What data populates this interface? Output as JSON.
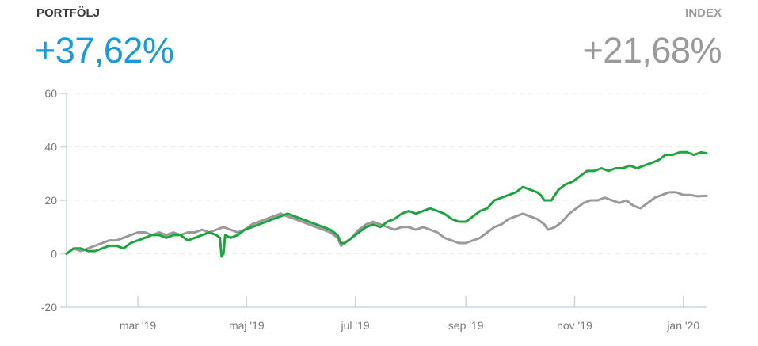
{
  "header": {
    "portfolio_label": "PORTFÖLJ",
    "portfolio_value": "+37,62%",
    "index_label": "INDEX",
    "index_value": "+21,68%"
  },
  "colors": {
    "portfolio_value": "#1a9ad6",
    "index_value": "#9a9a9a",
    "portfolio_line": "#1fa33f",
    "index_line": "#9a9a9a",
    "axis": "#c8d6e2"
  },
  "chart_data": {
    "type": "line",
    "title": "",
    "xlabel": "",
    "ylabel": "",
    "ylim": [
      -20,
      60
    ],
    "yticks": [
      -20,
      0,
      20,
      40,
      60
    ],
    "xlim": [
      "2019-01-20",
      "2020-01-14"
    ],
    "xticks": [
      {
        "label": "mar '19",
        "x": "2019-03-01"
      },
      {
        "label": "maj '19",
        "x": "2019-05-01"
      },
      {
        "label": "jul '19",
        "x": "2019-07-01"
      },
      {
        "label": "sep '19",
        "x": "2019-09-01"
      },
      {
        "label": "nov '19",
        "x": "2019-11-01"
      },
      {
        "label": "jan '20",
        "x": "2020-01-01"
      }
    ],
    "grid": "horizontal dashed",
    "legend": "none",
    "series": [
      {
        "points": [
          [
            "2019-01-20",
            0
          ],
          [
            "2019-01-24",
            2
          ],
          [
            "2019-01-28",
            2
          ],
          [
            "2019-02-01",
            1
          ],
          [
            "2019-02-05",
            1
          ],
          [
            "2019-02-09",
            2
          ],
          [
            "2019-02-13",
            3
          ],
          [
            "2019-02-17",
            3
          ],
          [
            "2019-02-21",
            2
          ],
          [
            "2019-02-25",
            4
          ],
          [
            "2019-03-01",
            5
          ],
          [
            "2019-03-05",
            6
          ],
          [
            "2019-03-09",
            7
          ],
          [
            "2019-03-13",
            7
          ],
          [
            "2019-03-17",
            6
          ],
          [
            "2019-03-21",
            7
          ],
          [
            "2019-03-25",
            7
          ],
          [
            "2019-03-29",
            5
          ],
          [
            "2019-04-02",
            6
          ],
          [
            "2019-04-06",
            7
          ],
          [
            "2019-04-10",
            8
          ],
          [
            "2019-04-14",
            7
          ],
          [
            "2019-04-16",
            6
          ],
          [
            "2019-04-17",
            -1
          ],
          [
            "2019-04-18",
            0
          ],
          [
            "2019-04-19",
            7
          ],
          [
            "2019-04-22",
            6
          ],
          [
            "2019-04-26",
            7
          ],
          [
            "2019-04-30",
            9
          ],
          [
            "2019-05-04",
            10
          ],
          [
            "2019-05-08",
            11
          ],
          [
            "2019-05-12",
            12
          ],
          [
            "2019-05-16",
            13
          ],
          [
            "2019-05-20",
            14
          ],
          [
            "2019-05-24",
            15
          ],
          [
            "2019-05-28",
            14
          ],
          [
            "2019-06-01",
            13
          ],
          [
            "2019-06-05",
            12
          ],
          [
            "2019-06-09",
            11
          ],
          [
            "2019-06-13",
            10
          ],
          [
            "2019-06-17",
            9
          ],
          [
            "2019-06-21",
            7
          ],
          [
            "2019-06-23",
            4
          ],
          [
            "2019-06-25",
            4
          ],
          [
            "2019-06-29",
            6
          ],
          [
            "2019-07-03",
            8
          ],
          [
            "2019-07-07",
            10
          ],
          [
            "2019-07-11",
            11
          ],
          [
            "2019-07-15",
            10
          ],
          [
            "2019-07-19",
            12
          ],
          [
            "2019-07-23",
            13
          ],
          [
            "2019-07-27",
            15
          ],
          [
            "2019-07-31",
            16
          ],
          [
            "2019-08-04",
            15
          ],
          [
            "2019-08-08",
            16
          ],
          [
            "2019-08-12",
            17
          ],
          [
            "2019-08-16",
            16
          ],
          [
            "2019-08-20",
            15
          ],
          [
            "2019-08-24",
            13
          ],
          [
            "2019-08-28",
            12
          ],
          [
            "2019-09-01",
            12
          ],
          [
            "2019-09-05",
            14
          ],
          [
            "2019-09-09",
            16
          ],
          [
            "2019-09-13",
            17
          ],
          [
            "2019-09-17",
            20
          ],
          [
            "2019-09-21",
            21
          ],
          [
            "2019-09-25",
            22
          ],
          [
            "2019-09-29",
            23
          ],
          [
            "2019-10-03",
            25
          ],
          [
            "2019-10-07",
            24
          ],
          [
            "2019-10-11",
            23
          ],
          [
            "2019-10-13",
            22
          ],
          [
            "2019-10-15",
            20
          ],
          [
            "2019-10-19",
            20
          ],
          [
            "2019-10-23",
            24
          ],
          [
            "2019-10-27",
            26
          ],
          [
            "2019-10-31",
            27
          ],
          [
            "2019-11-04",
            29
          ],
          [
            "2019-11-08",
            31
          ],
          [
            "2019-11-12",
            31
          ],
          [
            "2019-11-16",
            32
          ],
          [
            "2019-11-20",
            31
          ],
          [
            "2019-11-24",
            32
          ],
          [
            "2019-11-28",
            32
          ],
          [
            "2019-12-02",
            33
          ],
          [
            "2019-12-06",
            32
          ],
          [
            "2019-12-10",
            33
          ],
          [
            "2019-12-14",
            34
          ],
          [
            "2019-12-18",
            35
          ],
          [
            "2019-12-22",
            37
          ],
          [
            "2019-12-26",
            37
          ],
          [
            "2019-12-30",
            38
          ],
          [
            "2020-01-03",
            38
          ],
          [
            "2020-01-07",
            37
          ],
          [
            "2020-01-11",
            38
          ],
          [
            "2020-01-14",
            37.6
          ]
        ]
      },
      {
        "points": [
          [
            "2019-01-20",
            0
          ],
          [
            "2019-01-24",
            2
          ],
          [
            "2019-01-28",
            1
          ],
          [
            "2019-02-01",
            2
          ],
          [
            "2019-02-05",
            3
          ],
          [
            "2019-02-09",
            4
          ],
          [
            "2019-02-13",
            5
          ],
          [
            "2019-02-17",
            5
          ],
          [
            "2019-02-21",
            6
          ],
          [
            "2019-02-25",
            7
          ],
          [
            "2019-03-01",
            8
          ],
          [
            "2019-03-05",
            8
          ],
          [
            "2019-03-09",
            7
          ],
          [
            "2019-03-13",
            8
          ],
          [
            "2019-03-17",
            7
          ],
          [
            "2019-03-21",
            8
          ],
          [
            "2019-03-25",
            7
          ],
          [
            "2019-03-29",
            8
          ],
          [
            "2019-04-02",
            8
          ],
          [
            "2019-04-06",
            9
          ],
          [
            "2019-04-10",
            8
          ],
          [
            "2019-04-14",
            9
          ],
          [
            "2019-04-18",
            10
          ],
          [
            "2019-04-22",
            9
          ],
          [
            "2019-04-26",
            8
          ],
          [
            "2019-04-30",
            9
          ],
          [
            "2019-05-04",
            11
          ],
          [
            "2019-05-08",
            12
          ],
          [
            "2019-05-12",
            13
          ],
          [
            "2019-05-16",
            14
          ],
          [
            "2019-05-20",
            15
          ],
          [
            "2019-05-24",
            14
          ],
          [
            "2019-05-28",
            13
          ],
          [
            "2019-06-01",
            12
          ],
          [
            "2019-06-05",
            11
          ],
          [
            "2019-06-09",
            10
          ],
          [
            "2019-06-13",
            9
          ],
          [
            "2019-06-17",
            8
          ],
          [
            "2019-06-21",
            6
          ],
          [
            "2019-06-23",
            3
          ],
          [
            "2019-06-25",
            4
          ],
          [
            "2019-06-29",
            6
          ],
          [
            "2019-07-03",
            9
          ],
          [
            "2019-07-07",
            11
          ],
          [
            "2019-07-11",
            12
          ],
          [
            "2019-07-15",
            11
          ],
          [
            "2019-07-19",
            10
          ],
          [
            "2019-07-23",
            9
          ],
          [
            "2019-07-27",
            10
          ],
          [
            "2019-07-31",
            10
          ],
          [
            "2019-08-04",
            9
          ],
          [
            "2019-08-08",
            10
          ],
          [
            "2019-08-12",
            9
          ],
          [
            "2019-08-16",
            8
          ],
          [
            "2019-08-20",
            6
          ],
          [
            "2019-08-24",
            5
          ],
          [
            "2019-08-28",
            4
          ],
          [
            "2019-09-01",
            4
          ],
          [
            "2019-09-05",
            5
          ],
          [
            "2019-09-09",
            6
          ],
          [
            "2019-09-13",
            8
          ],
          [
            "2019-09-17",
            10
          ],
          [
            "2019-09-21",
            11
          ],
          [
            "2019-09-25",
            13
          ],
          [
            "2019-09-29",
            14
          ],
          [
            "2019-10-03",
            15
          ],
          [
            "2019-10-07",
            14
          ],
          [
            "2019-10-11",
            13
          ],
          [
            "2019-10-15",
            11
          ],
          [
            "2019-10-17",
            9
          ],
          [
            "2019-10-21",
            10
          ],
          [
            "2019-10-25",
            12
          ],
          [
            "2019-10-29",
            15
          ],
          [
            "2019-11-02",
            17
          ],
          [
            "2019-11-06",
            19
          ],
          [
            "2019-11-10",
            20
          ],
          [
            "2019-11-14",
            20
          ],
          [
            "2019-11-18",
            21
          ],
          [
            "2019-11-22",
            20
          ],
          [
            "2019-11-26",
            19
          ],
          [
            "2019-11-30",
            20
          ],
          [
            "2019-12-04",
            18
          ],
          [
            "2019-12-08",
            17
          ],
          [
            "2019-12-12",
            19
          ],
          [
            "2019-12-16",
            21
          ],
          [
            "2019-12-20",
            22
          ],
          [
            "2019-12-24",
            23
          ],
          [
            "2019-12-28",
            23
          ],
          [
            "2020-01-01",
            22
          ],
          [
            "2020-01-05",
            22
          ],
          [
            "2020-01-09",
            21.5
          ],
          [
            "2020-01-14",
            21.7
          ]
        ]
      }
    ]
  }
}
